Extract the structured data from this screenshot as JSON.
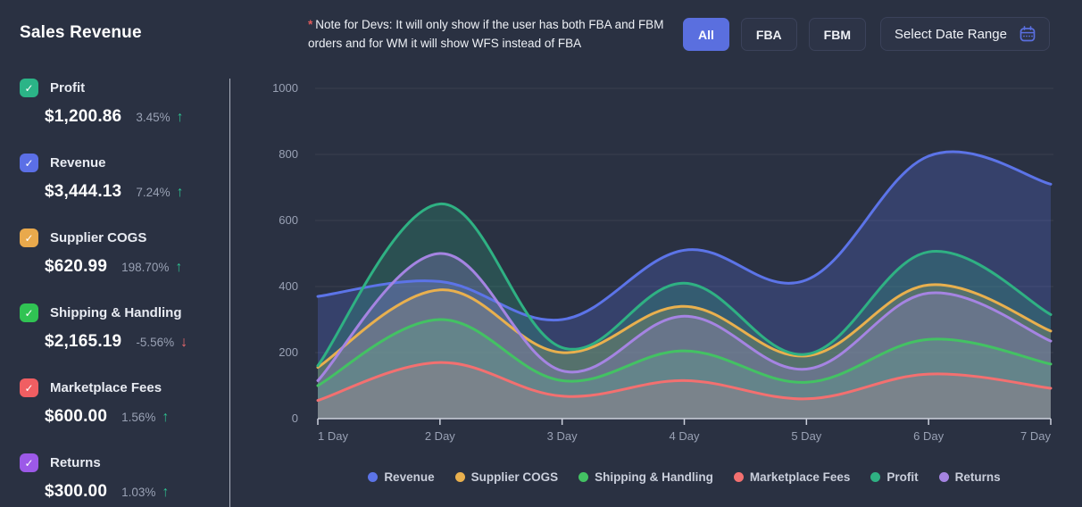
{
  "header": {
    "title": "Sales Revenue",
    "note": {
      "asterisk": "*",
      "text": "Note for Devs: It will only show if the user has both FBA and FBM orders and for WM it will show WFS instead of FBA"
    },
    "filters": [
      {
        "label": "All",
        "active": true
      },
      {
        "label": "FBA",
        "active": false
      },
      {
        "label": "FBM",
        "active": false
      }
    ],
    "date_range": {
      "label": "Select Date Range"
    }
  },
  "sidebar": {
    "items": [
      {
        "label": "Profit",
        "checked": true,
        "checkbox_color": "#2bb487",
        "value": "$1,200.86",
        "change": "3.45%",
        "direction": "up"
      },
      {
        "label": "Revenue",
        "checked": true,
        "checkbox_color": "#5b6fe6",
        "value": "$3,444.13",
        "change": "7.24%",
        "direction": "up"
      },
      {
        "label": "Supplier COGS",
        "checked": true,
        "checkbox_color": "#e9a94c",
        "value": "$620.99",
        "change": "198.70%",
        "direction": "up"
      },
      {
        "label": "Shipping & Handling",
        "checked": true,
        "checkbox_color": "#30c353",
        "value": "$2,165.19",
        "change": "-5.56%",
        "direction": "down"
      },
      {
        "label": "Marketplace Fees",
        "checked": true,
        "checkbox_color": "#f05e62",
        "value": "$600.00",
        "change": "1.56%",
        "direction": "up"
      },
      {
        "label": "Returns",
        "checked": true,
        "checkbox_color": "#9c59e8",
        "value": "$300.00",
        "change": "1.03%",
        "direction": "up"
      }
    ]
  },
  "chart_data": {
    "type": "area",
    "x": [
      1,
      2,
      3,
      4,
      5,
      6,
      7
    ],
    "x_labels": [
      "1 Day",
      "2 Day",
      "3 Day",
      "4 Day",
      "5 Day",
      "6 Day",
      "7 Day"
    ],
    "y_ticks": [
      0,
      200,
      400,
      600,
      800,
      1000
    ],
    "ylim": [
      0,
      1000
    ],
    "grid": "horizontal",
    "legend_position": "bottom",
    "series": [
      {
        "name": "Revenue",
        "color": "#5c74e8",
        "values": [
          370,
          415,
          300,
          510,
          420,
          795,
          710
        ]
      },
      {
        "name": "Supplier COGS",
        "color": "#e9b04e",
        "values": [
          155,
          390,
          200,
          340,
          190,
          405,
          265
        ]
      },
      {
        "name": "Shipping & Handling",
        "color": "#43c263",
        "values": [
          100,
          300,
          115,
          205,
          110,
          240,
          165
        ]
      },
      {
        "name": "Marketplace Fees",
        "color": "#f37070",
        "values": [
          55,
          170,
          68,
          115,
          60,
          135,
          92
        ]
      },
      {
        "name": "Profit",
        "color": "#2fb183",
        "values": [
          160,
          650,
          215,
          410,
          195,
          505,
          315
        ]
      },
      {
        "name": "Returns",
        "color": "#a584e2",
        "values": [
          115,
          500,
          145,
          310,
          150,
          380,
          235
        ]
      }
    ]
  },
  "colors": {
    "background": "#2a3142",
    "accent": "#5a6fdf",
    "up": "#2dbd8e",
    "down": "#ef6a6e",
    "axis": "#ccd1dd",
    "tick_text": "#99a1b4"
  },
  "icons": {
    "check": "✓",
    "up_arrow": "↑",
    "down_arrow": "↓"
  }
}
